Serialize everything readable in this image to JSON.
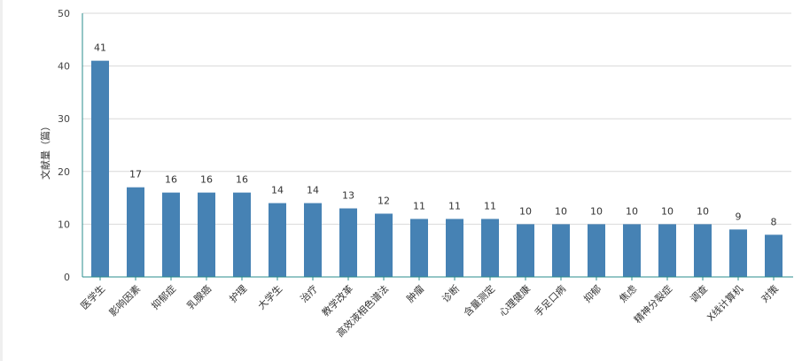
{
  "chart_data": {
    "type": "bar",
    "title": "",
    "xlabel": "",
    "ylabel": "文献量（篇）",
    "ylim": [
      0,
      50
    ],
    "yticks": [
      0,
      10,
      20,
      30,
      40,
      50
    ],
    "grid": true,
    "bar_color": "#4682b4",
    "categories": [
      "医学生",
      "影响因素",
      "抑郁症",
      "乳腺癌",
      "护理",
      "大学生",
      "治疗",
      "教学改革",
      "高效液相色谱法",
      "肿瘤",
      "诊断",
      "含量测定",
      "心理健康",
      "手足口病",
      "抑郁",
      "焦虑",
      "精神分裂症",
      "调查",
      "X线计算机",
      "对策"
    ],
    "values": [
      41,
      17,
      16,
      16,
      16,
      14,
      14,
      13,
      12,
      11,
      11,
      11,
      10,
      10,
      10,
      10,
      10,
      10,
      9,
      8
    ]
  }
}
